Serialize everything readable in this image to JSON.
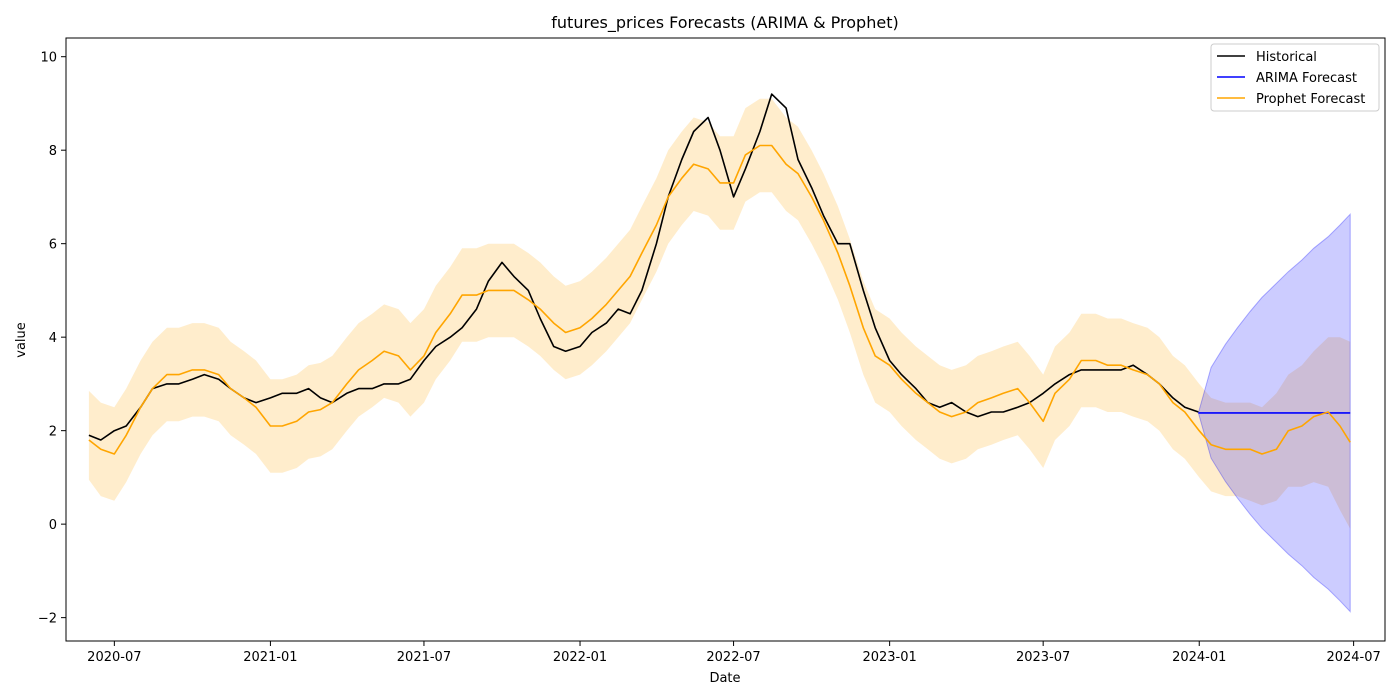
{
  "chart_data": {
    "type": "line",
    "title": "futures_prices Forecasts (ARIMA & Prophet)",
    "xlabel": "Date",
    "ylabel": "value",
    "xlim": [
      "2020-05-05",
      "2024-08-07"
    ],
    "ylim": [
      -2.5,
      10.4
    ],
    "x_ticks": [
      "2020-07",
      "2021-01",
      "2021-07",
      "2022-01",
      "2022-07",
      "2023-01",
      "2023-07",
      "2024-01",
      "2024-07"
    ],
    "x_tick_values": [
      "2020-07-01",
      "2021-01-01",
      "2021-07-01",
      "2022-01-01",
      "2022-07-01",
      "2023-01-01",
      "2023-07-01",
      "2024-01-01",
      "2024-07-01"
    ],
    "y_ticks": [
      "−2",
      "0",
      "2",
      "4",
      "6",
      "8",
      "10"
    ],
    "y_tick_values": [
      -2,
      0,
      2,
      4,
      6,
      8,
      10
    ],
    "grid": false,
    "legend": {
      "placement": "top-right",
      "entries": [
        {
          "label": "Historical",
          "color": "#000000"
        },
        {
          "label": "ARIMA Forecast",
          "color": "#0000ff"
        },
        {
          "label": "Prophet Forecast",
          "color": "#ffa500"
        }
      ]
    },
    "series": [
      {
        "name": "Historical",
        "color": "#000000",
        "x": [
          "2020-06-01",
          "2020-06-15",
          "2020-07-01",
          "2020-07-15",
          "2020-08-01",
          "2020-08-15",
          "2020-09-01",
          "2020-09-15",
          "2020-10-01",
          "2020-10-15",
          "2020-11-01",
          "2020-11-15",
          "2020-12-01",
          "2020-12-15",
          "2021-01-01",
          "2021-01-15",
          "2021-02-01",
          "2021-02-15",
          "2021-03-01",
          "2021-03-15",
          "2021-04-01",
          "2021-04-15",
          "2021-05-01",
          "2021-05-15",
          "2021-06-01",
          "2021-06-15",
          "2021-07-01",
          "2021-07-15",
          "2021-08-01",
          "2021-08-15",
          "2021-09-01",
          "2021-09-15",
          "2021-10-01",
          "2021-10-15",
          "2021-11-01",
          "2021-11-15",
          "2021-12-01",
          "2021-12-15",
          "2022-01-01",
          "2022-01-15",
          "2022-02-01",
          "2022-02-15",
          "2022-03-01",
          "2022-03-15",
          "2022-04-01",
          "2022-04-15",
          "2022-05-01",
          "2022-05-15",
          "2022-06-01",
          "2022-06-15",
          "2022-07-01",
          "2022-07-15",
          "2022-08-01",
          "2022-08-15",
          "2022-09-01",
          "2022-09-15",
          "2022-10-01",
          "2022-10-15",
          "2022-11-01",
          "2022-11-15",
          "2022-12-01",
          "2022-12-15",
          "2023-01-01",
          "2023-01-15",
          "2023-02-01",
          "2023-02-15",
          "2023-03-01",
          "2023-03-15",
          "2023-04-01",
          "2023-04-15",
          "2023-05-01",
          "2023-05-15",
          "2023-06-01",
          "2023-06-15",
          "2023-07-01",
          "2023-07-15",
          "2023-08-01",
          "2023-08-15",
          "2023-09-01",
          "2023-09-15",
          "2023-10-01",
          "2023-10-15",
          "2023-11-01",
          "2023-11-15",
          "2023-12-01",
          "2023-12-15",
          "2023-12-31"
        ],
        "values": [
          1.9,
          1.8,
          2.0,
          2.1,
          2.5,
          2.9,
          3.0,
          3.0,
          3.1,
          3.2,
          3.1,
          2.9,
          2.7,
          2.6,
          2.7,
          2.8,
          2.8,
          2.9,
          2.7,
          2.6,
          2.8,
          2.9,
          2.9,
          3.0,
          3.0,
          3.1,
          3.5,
          3.8,
          4.0,
          4.2,
          4.6,
          5.2,
          5.6,
          5.3,
          5.0,
          4.4,
          3.8,
          3.7,
          3.8,
          4.1,
          4.3,
          4.6,
          4.5,
          5.0,
          6.0,
          7.0,
          7.8,
          8.4,
          8.7,
          8.0,
          7.0,
          7.6,
          8.4,
          9.2,
          8.9,
          7.8,
          7.2,
          6.6,
          6.0,
          6.0,
          5.0,
          4.2,
          3.5,
          3.2,
          2.9,
          2.6,
          2.5,
          2.6,
          2.4,
          2.3,
          2.4,
          2.4,
          2.5,
          2.6,
          2.8,
          3.0,
          3.2,
          3.3,
          3.3,
          3.3,
          3.3,
          3.4,
          3.2,
          3.0,
          2.7,
          2.5,
          2.4
        ]
      },
      {
        "name": "ARIMA Forecast",
        "color": "#0000ff",
        "x": [
          "2023-12-31",
          "2024-06-27"
        ],
        "values": [
          2.38,
          2.38
        ]
      },
      {
        "name": "Prophet Forecast",
        "color": "#ffa500",
        "x": [
          "2020-06-01",
          "2020-06-15",
          "2020-07-01",
          "2020-07-15",
          "2020-08-01",
          "2020-08-15",
          "2020-09-01",
          "2020-09-15",
          "2020-10-01",
          "2020-10-15",
          "2020-11-01",
          "2020-11-15",
          "2020-12-01",
          "2020-12-15",
          "2021-01-01",
          "2021-01-15",
          "2021-02-01",
          "2021-02-15",
          "2021-03-01",
          "2021-03-15",
          "2021-04-01",
          "2021-04-15",
          "2021-05-01",
          "2021-05-15",
          "2021-06-01",
          "2021-06-15",
          "2021-07-01",
          "2021-07-15",
          "2021-08-01",
          "2021-08-15",
          "2021-09-01",
          "2021-09-15",
          "2021-10-01",
          "2021-10-15",
          "2021-11-01",
          "2021-11-15",
          "2021-12-01",
          "2021-12-15",
          "2022-01-01",
          "2022-01-15",
          "2022-02-01",
          "2022-02-15",
          "2022-03-01",
          "2022-03-15",
          "2022-04-01",
          "2022-04-15",
          "2022-05-01",
          "2022-05-15",
          "2022-06-01",
          "2022-06-15",
          "2022-07-01",
          "2022-07-15",
          "2022-08-01",
          "2022-08-15",
          "2022-09-01",
          "2022-09-15",
          "2022-10-01",
          "2022-10-15",
          "2022-11-01",
          "2022-11-15",
          "2022-12-01",
          "2022-12-15",
          "2023-01-01",
          "2023-01-15",
          "2023-02-01",
          "2023-02-15",
          "2023-03-01",
          "2023-03-15",
          "2023-04-01",
          "2023-04-15",
          "2023-05-01",
          "2023-05-15",
          "2023-06-01",
          "2023-06-15",
          "2023-07-01",
          "2023-07-15",
          "2023-08-01",
          "2023-08-15",
          "2023-09-01",
          "2023-09-15",
          "2023-10-01",
          "2023-10-15",
          "2023-11-01",
          "2023-11-15",
          "2023-12-01",
          "2023-12-15",
          "2024-01-01",
          "2024-01-15",
          "2024-02-01",
          "2024-02-15",
          "2024-03-01",
          "2024-03-15",
          "2024-04-01",
          "2024-04-15",
          "2024-05-01",
          "2024-05-15",
          "2024-06-01",
          "2024-06-15",
          "2024-06-27"
        ],
        "values": [
          1.8,
          1.6,
          1.5,
          1.9,
          2.5,
          2.9,
          3.2,
          3.2,
          3.3,
          3.3,
          3.2,
          2.9,
          2.7,
          2.5,
          2.1,
          2.1,
          2.2,
          2.4,
          2.45,
          2.6,
          3.0,
          3.3,
          3.5,
          3.7,
          3.6,
          3.3,
          3.6,
          4.1,
          4.5,
          4.9,
          4.9,
          5.0,
          5.0,
          5.0,
          4.8,
          4.6,
          4.3,
          4.1,
          4.2,
          4.4,
          4.7,
          5.0,
          5.3,
          5.8,
          6.4,
          7.0,
          7.4,
          7.7,
          7.6,
          7.3,
          7.3,
          7.9,
          8.1,
          8.1,
          7.7,
          7.5,
          7.0,
          6.5,
          5.8,
          5.1,
          4.2,
          3.6,
          3.4,
          3.1,
          2.8,
          2.6,
          2.4,
          2.3,
          2.4,
          2.6,
          2.7,
          2.8,
          2.9,
          2.6,
          2.2,
          2.8,
          3.1,
          3.5,
          3.5,
          3.4,
          3.4,
          3.3,
          3.2,
          3.0,
          2.6,
          2.4,
          2.0,
          1.7,
          1.6,
          1.6,
          1.6,
          1.5,
          1.6,
          2.0,
          2.1,
          2.3,
          2.4,
          2.1,
          1.75
        ]
      }
    ],
    "bands": [
      {
        "label": "Prophet Forecast interval",
        "color": "#ffa500",
        "x": [
          "2020-06-01",
          "2020-06-15",
          "2020-07-01",
          "2020-07-15",
          "2020-08-01",
          "2020-08-15",
          "2020-09-01",
          "2020-09-15",
          "2020-10-01",
          "2020-10-15",
          "2020-11-01",
          "2020-11-15",
          "2020-12-01",
          "2020-12-15",
          "2021-01-01",
          "2021-01-15",
          "2021-02-01",
          "2021-02-15",
          "2021-03-01",
          "2021-03-15",
          "2021-04-01",
          "2021-04-15",
          "2021-05-01",
          "2021-05-15",
          "2021-06-01",
          "2021-06-15",
          "2021-07-01",
          "2021-07-15",
          "2021-08-01",
          "2021-08-15",
          "2021-09-01",
          "2021-09-15",
          "2021-10-01",
          "2021-10-15",
          "2021-11-01",
          "2021-11-15",
          "2021-12-01",
          "2021-12-15",
          "2022-01-01",
          "2022-01-15",
          "2022-02-01",
          "2022-02-15",
          "2022-03-01",
          "2022-03-15",
          "2022-04-01",
          "2022-04-15",
          "2022-05-01",
          "2022-05-15",
          "2022-06-01",
          "2022-06-15",
          "2022-07-01",
          "2022-07-15",
          "2022-08-01",
          "2022-08-15",
          "2022-09-01",
          "2022-09-15",
          "2022-10-01",
          "2022-10-15",
          "2022-11-01",
          "2022-11-15",
          "2022-12-01",
          "2022-12-15",
          "2023-01-01",
          "2023-01-15",
          "2023-02-01",
          "2023-02-15",
          "2023-03-01",
          "2023-03-15",
          "2023-04-01",
          "2023-04-15",
          "2023-05-01",
          "2023-05-15",
          "2023-06-01",
          "2023-06-15",
          "2023-07-01",
          "2023-07-15",
          "2023-08-01",
          "2023-08-15",
          "2023-09-01",
          "2023-09-15",
          "2023-10-01",
          "2023-10-15",
          "2023-11-01",
          "2023-11-15",
          "2023-12-01",
          "2023-12-15",
          "2024-01-01",
          "2024-01-15",
          "2024-02-01",
          "2024-02-15",
          "2024-03-01",
          "2024-03-15",
          "2024-04-01",
          "2024-04-15",
          "2024-05-01",
          "2024-05-15",
          "2024-06-01",
          "2024-06-15",
          "2024-06-27"
        ],
        "upper": [
          2.85,
          2.6,
          2.5,
          2.9,
          3.5,
          3.9,
          4.2,
          4.2,
          4.3,
          4.3,
          4.2,
          3.9,
          3.7,
          3.5,
          3.1,
          3.1,
          3.2,
          3.4,
          3.45,
          3.6,
          4.0,
          4.3,
          4.5,
          4.7,
          4.6,
          4.3,
          4.6,
          5.1,
          5.5,
          5.9,
          5.9,
          6.0,
          6.0,
          6.0,
          5.8,
          5.6,
          5.3,
          5.1,
          5.2,
          5.4,
          5.7,
          6.0,
          6.3,
          6.8,
          7.4,
          8.0,
          8.4,
          8.7,
          8.6,
          8.3,
          8.3,
          8.9,
          9.1,
          9.1,
          8.7,
          8.5,
          8.0,
          7.5,
          6.8,
          6.1,
          5.2,
          4.6,
          4.4,
          4.1,
          3.8,
          3.6,
          3.4,
          3.3,
          3.4,
          3.6,
          3.7,
          3.8,
          3.9,
          3.6,
          3.2,
          3.8,
          4.1,
          4.5,
          4.5,
          4.4,
          4.4,
          4.3,
          4.2,
          4.0,
          3.6,
          3.4,
          3.0,
          2.7,
          2.6,
          2.6,
          2.6,
          2.5,
          2.8,
          3.2,
          3.4,
          3.7,
          4.0,
          4.0,
          3.9
        ],
        "lower": [
          0.95,
          0.6,
          0.5,
          0.9,
          1.5,
          1.9,
          2.2,
          2.2,
          2.3,
          2.3,
          2.2,
          1.9,
          1.7,
          1.5,
          1.1,
          1.1,
          1.2,
          1.4,
          1.45,
          1.6,
          2.0,
          2.3,
          2.5,
          2.7,
          2.6,
          2.3,
          2.6,
          3.1,
          3.5,
          3.9,
          3.9,
          4.0,
          4.0,
          4.0,
          3.8,
          3.6,
          3.3,
          3.1,
          3.2,
          3.4,
          3.7,
          4.0,
          4.3,
          4.8,
          5.4,
          6.0,
          6.4,
          6.7,
          6.6,
          6.3,
          6.3,
          6.9,
          7.1,
          7.1,
          6.7,
          6.5,
          6.0,
          5.5,
          4.8,
          4.1,
          3.2,
          2.6,
          2.4,
          2.1,
          1.8,
          1.6,
          1.4,
          1.3,
          1.4,
          1.6,
          1.7,
          1.8,
          1.9,
          1.6,
          1.2,
          1.8,
          2.1,
          2.5,
          2.5,
          2.4,
          2.4,
          2.3,
          2.2,
          2.0,
          1.6,
          1.4,
          1.0,
          0.7,
          0.6,
          0.6,
          0.5,
          0.4,
          0.5,
          0.8,
          0.8,
          0.9,
          0.8,
          0.3,
          -0.1
        ]
      },
      {
        "label": "ARIMA Forecast interval",
        "color": "#0000ff",
        "x": [
          "2023-12-31",
          "2024-01-15",
          "2024-02-01",
          "2024-02-15",
          "2024-03-01",
          "2024-03-15",
          "2024-04-01",
          "2024-04-15",
          "2024-05-01",
          "2024-05-15",
          "2024-06-01",
          "2024-06-15",
          "2024-06-27"
        ],
        "upper": [
          2.38,
          3.35,
          3.85,
          4.2,
          4.55,
          4.85,
          5.15,
          5.4,
          5.65,
          5.9,
          6.15,
          6.4,
          6.63
        ],
        "lower": [
          2.38,
          1.41,
          0.91,
          0.56,
          0.21,
          -0.09,
          -0.39,
          -0.64,
          -0.89,
          -1.14,
          -1.39,
          -1.64,
          -1.87
        ]
      }
    ]
  }
}
